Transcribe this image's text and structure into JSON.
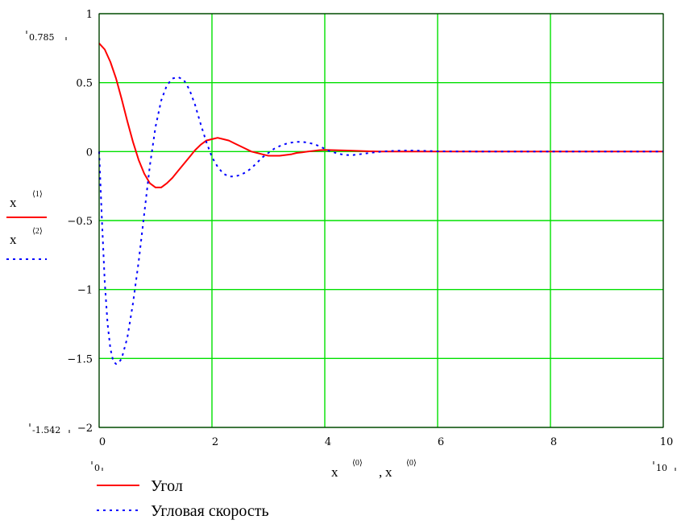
{
  "chart_data": {
    "type": "line",
    "xlim": [
      0,
      10
    ],
    "ylim": [
      -2,
      1
    ],
    "x_ticks": [
      "0",
      "2",
      "4",
      "6",
      "8",
      "10"
    ],
    "y_ticks": [
      "1",
      "0.5",
      "0",
      "−0.5",
      "−1",
      "−1.5",
      "−2"
    ],
    "grid": true,
    "grid_color": "#00e000",
    "x_range_labels": {
      "min": "0",
      "max": "10"
    },
    "y_range_labels": {
      "max": "0.785",
      "min": "-1.542"
    },
    "x_axis_label": {
      "base1": "x",
      "sup1": "⟨0⟩",
      "sep": ",",
      "base2": "x",
      "sup2": "⟨0⟩"
    },
    "y_axis_labels": [
      {
        "base": "x",
        "sup": "⟨1⟩",
        "color": "#ff0000",
        "dash": "solid"
      },
      {
        "base": "x",
        "sup": "⟨2⟩",
        "color": "#0000ff",
        "dash": "dotted"
      }
    ],
    "legend_placement": "bottom-left",
    "series": [
      {
        "name": "Угол",
        "color": "#ff0000",
        "dash": "solid",
        "x": [
          0,
          0.1,
          0.2,
          0.3,
          0.4,
          0.5,
          0.6,
          0.7,
          0.8,
          0.9,
          1.0,
          1.1,
          1.2,
          1.3,
          1.4,
          1.5,
          1.6,
          1.7,
          1.8,
          1.9,
          2.0,
          2.1,
          2.2,
          2.3,
          2.4,
          2.5,
          2.6,
          2.7,
          2.8,
          2.9,
          3.0,
          3.1,
          3.2,
          3.3,
          3.4,
          3.5,
          3.6,
          3.7,
          3.8,
          3.9,
          4.0,
          4.2,
          4.4,
          4.6,
          4.8,
          5.0,
          6.0,
          7.0,
          8.0,
          9.0,
          10.0
        ],
        "y": [
          0.785,
          0.74,
          0.65,
          0.53,
          0.38,
          0.22,
          0.07,
          -0.06,
          -0.16,
          -0.23,
          -0.26,
          -0.26,
          -0.23,
          -0.19,
          -0.14,
          -0.09,
          -0.04,
          0.01,
          0.05,
          0.08,
          0.09,
          0.1,
          0.09,
          0.08,
          0.06,
          0.04,
          0.02,
          0.0,
          -0.01,
          -0.02,
          -0.03,
          -0.03,
          -0.03,
          -0.025,
          -0.02,
          -0.01,
          -0.005,
          0.0,
          0.005,
          0.01,
          0.012,
          0.01,
          0.008,
          0.005,
          0.002,
          0.0,
          0.0,
          0.0,
          0.0,
          0.0,
          0.0
        ]
      },
      {
        "name": "Угловая скорость",
        "color": "#0000ff",
        "dash": "dotted",
        "x": [
          0,
          0.05,
          0.1,
          0.15,
          0.2,
          0.25,
          0.3,
          0.35,
          0.4,
          0.5,
          0.6,
          0.7,
          0.8,
          0.9,
          1.0,
          1.1,
          1.2,
          1.3,
          1.4,
          1.5,
          1.6,
          1.7,
          1.8,
          1.9,
          2.0,
          2.1,
          2.2,
          2.3,
          2.4,
          2.5,
          2.6,
          2.7,
          2.8,
          2.9,
          3.0,
          3.1,
          3.2,
          3.3,
          3.4,
          3.5,
          3.6,
          3.7,
          3.8,
          3.9,
          4.0,
          4.1,
          4.2,
          4.3,
          4.4,
          4.5,
          4.6,
          4.7,
          4.8,
          5.0,
          5.2,
          5.4,
          5.6,
          5.8,
          6.0,
          7.0,
          8.0,
          9.0,
          10.0
        ],
        "y": [
          0,
          -0.5,
          -0.95,
          -1.25,
          -1.43,
          -1.52,
          -1.54,
          -1.53,
          -1.5,
          -1.35,
          -1.1,
          -0.8,
          -0.45,
          -0.1,
          0.18,
          0.37,
          0.48,
          0.53,
          0.54,
          0.52,
          0.45,
          0.34,
          0.2,
          0.07,
          -0.04,
          -0.11,
          -0.16,
          -0.18,
          -0.18,
          -0.17,
          -0.15,
          -0.12,
          -0.08,
          -0.04,
          -0.01,
          0.02,
          0.04,
          0.055,
          0.065,
          0.07,
          0.07,
          0.065,
          0.055,
          0.04,
          0.02,
          0.0,
          -0.01,
          -0.02,
          -0.025,
          -0.025,
          -0.02,
          -0.015,
          -0.01,
          0.0,
          0.005,
          0.008,
          0.008,
          0.005,
          0.002,
          0.0,
          0.0,
          0.0,
          0.0
        ]
      }
    ]
  }
}
